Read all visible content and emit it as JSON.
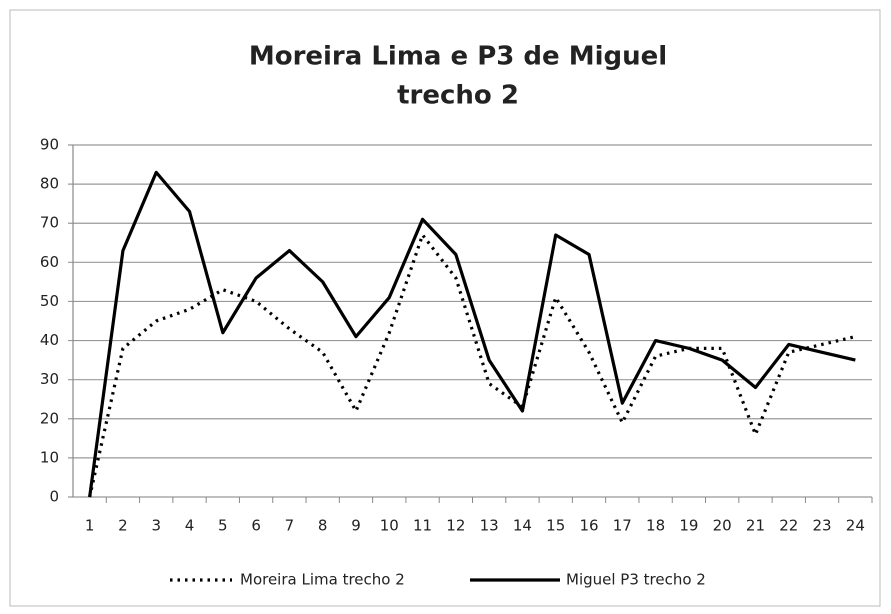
{
  "chart_data": {
    "type": "line",
    "title": [
      "Moreira Lima e P3 de Miguel",
      "trecho 2"
    ],
    "categories": [
      "1",
      "2",
      "3",
      "4",
      "5",
      "6",
      "7",
      "8",
      "9",
      "10",
      "11",
      "12",
      "13",
      "14",
      "15",
      "16",
      "17",
      "18",
      "19",
      "20",
      "21",
      "22",
      "23",
      "24"
    ],
    "series": [
      {
        "name": "Moreira Lima trecho 2",
        "color": "#000000",
        "dash": "dotted",
        "values": [
          0,
          38,
          45,
          48,
          53,
          50,
          43,
          37,
          22,
          42,
          67,
          56,
          29,
          23,
          51,
          37,
          19,
          36,
          38,
          38,
          16,
          37,
          39,
          41
        ]
      },
      {
        "name": "Miguel P3 trecho 2",
        "color": "#000000",
        "dash": "solid",
        "values": [
          0,
          63,
          83,
          73,
          42,
          56,
          63,
          55,
          41,
          51,
          71,
          62,
          35,
          22,
          67,
          62,
          24,
          40,
          38,
          35,
          28,
          39,
          37,
          35
        ]
      }
    ],
    "ylim": [
      0,
      90
    ],
    "yticks": [
      0,
      10,
      20,
      30,
      40,
      50,
      60,
      70,
      80,
      90
    ],
    "grid": true,
    "legend": "bottom"
  }
}
